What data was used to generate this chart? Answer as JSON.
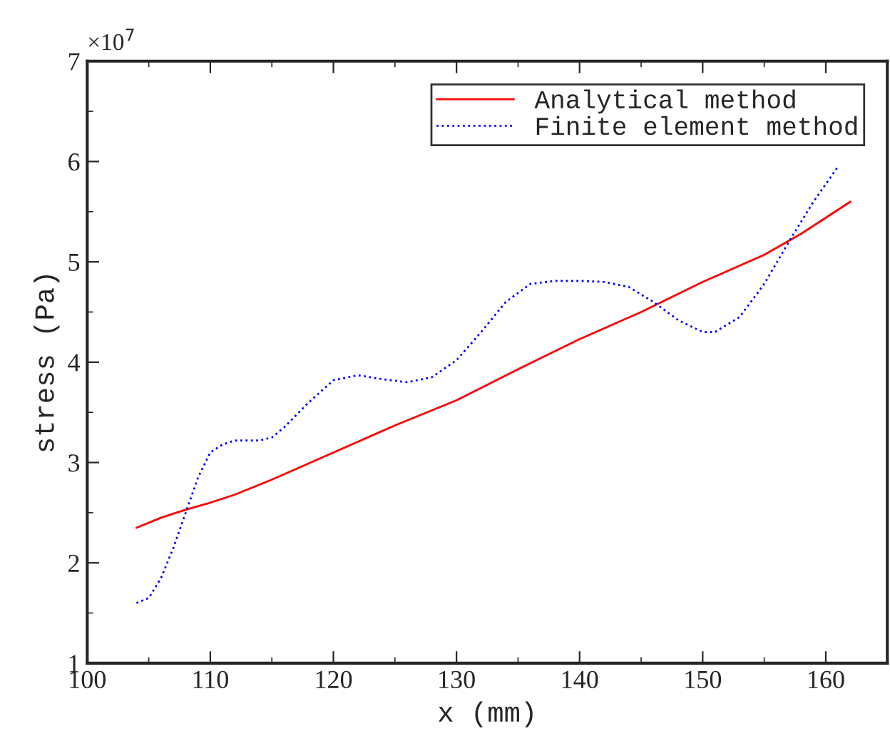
{
  "chart_data": {
    "type": "line",
    "xlabel": "x (mm)",
    "ylabel": "stress (Pa)",
    "annotations": [
      "×10$^{7}$"
    ],
    "xlim": [
      100,
      165
    ],
    "xticks": [
      100,
      110,
      120,
      130,
      140,
      150,
      160
    ],
    "ylim": [
      1,
      7
    ],
    "yticks": [
      1,
      2,
      3,
      4,
      5,
      6,
      7
    ],
    "grid": false,
    "legend": "top right",
    "series": [
      {
        "name": "Analytical method",
        "color": "#ff0000",
        "line_style": "solid",
        "x": [
          104,
          106,
          108,
          110,
          112,
          115,
          120,
          125,
          130,
          135,
          140,
          145,
          150,
          155,
          158,
          162
        ],
        "values": [
          2.35,
          2.45,
          2.53,
          2.6,
          2.68,
          2.83,
          3.1,
          3.37,
          3.62,
          3.93,
          4.23,
          4.5,
          4.8,
          5.07,
          5.28,
          5.6
        ]
      },
      {
        "name": "Finite element method",
        "color": "#0000ff",
        "line_style": "dotted",
        "x": [
          104,
          105,
          106,
          107,
          108,
          109,
          110,
          111,
          112,
          114,
          115,
          116,
          118,
          120,
          122,
          124,
          126,
          128,
          130,
          132,
          134,
          136,
          138,
          140,
          142,
          144,
          146,
          148,
          150,
          151,
          153,
          155,
          157,
          159,
          161
        ],
        "values": [
          1.6,
          1.65,
          1.85,
          2.15,
          2.5,
          2.85,
          3.1,
          3.18,
          3.22,
          3.22,
          3.25,
          3.35,
          3.6,
          3.82,
          3.87,
          3.83,
          3.8,
          3.85,
          4.02,
          4.3,
          4.6,
          4.78,
          4.81,
          4.81,
          4.8,
          4.75,
          4.6,
          4.42,
          4.3,
          4.3,
          4.45,
          4.78,
          5.2,
          5.6,
          5.95
        ]
      }
    ]
  }
}
